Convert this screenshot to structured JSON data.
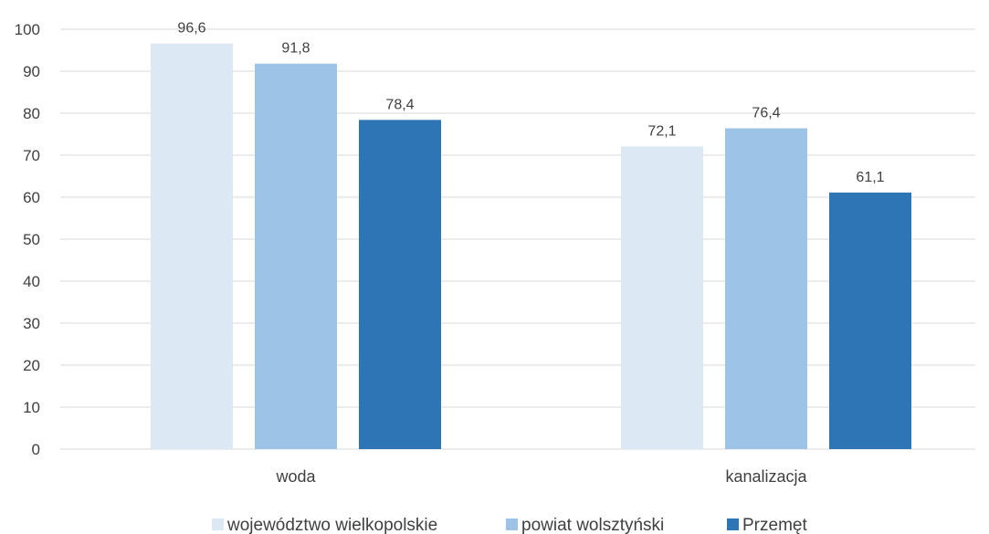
{
  "chart_data": {
    "type": "bar",
    "categories": [
      "woda",
      "kanalizacja"
    ],
    "series": [
      {
        "name": "województwo wielkopolskie",
        "color": "#dde8f5",
        "values": [
          96.6,
          72.1
        ],
        "labels": [
          "96,6",
          "72,1"
        ]
      },
      {
        "name": "powiat wolsztyński",
        "color": "#9dc3e6",
        "values": [
          91.8,
          76.4
        ],
        "labels": [
          "91,8",
          "76,4"
        ]
      },
      {
        "name": "Przemęt",
        "color": "#2e75b6",
        "values": [
          78.4,
          61.1
        ],
        "labels": [
          "78,4",
          "61,1"
        ]
      }
    ],
    "ylim": [
      0,
      100
    ],
    "yticks": [
      0,
      10,
      20,
      30,
      40,
      50,
      60,
      70,
      80,
      90,
      100
    ],
    "grid": true,
    "legend_position": "bottom",
    "title": "",
    "xlabel": "",
    "ylabel": ""
  }
}
